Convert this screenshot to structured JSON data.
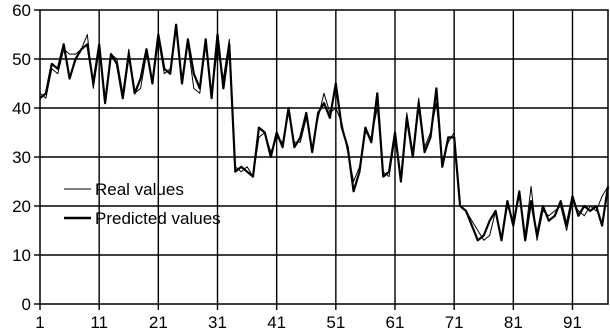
{
  "chart_data": {
    "type": "line",
    "title": "",
    "xlabel": "",
    "ylabel": "",
    "xlim": [
      1,
      97
    ],
    "ylim": [
      0,
      60
    ],
    "x_ticks": [
      1,
      11,
      21,
      31,
      41,
      51,
      61,
      71,
      81,
      91
    ],
    "y_ticks": [
      0,
      10,
      20,
      30,
      40,
      50,
      60
    ],
    "grid": true,
    "legend_position": "bottom-left",
    "series": [
      {
        "name": "Real values",
        "color": "#000000",
        "style": "thin",
        "x": [
          1,
          2,
          3,
          4,
          5,
          6,
          7,
          8,
          9,
          10,
          11,
          12,
          13,
          14,
          15,
          16,
          17,
          18,
          19,
          20,
          21,
          22,
          23,
          24,
          25,
          26,
          27,
          28,
          29,
          30,
          31,
          32,
          33,
          34,
          35,
          36,
          37,
          38,
          39,
          40,
          41,
          42,
          43,
          44,
          45,
          46,
          47,
          48,
          49,
          50,
          51,
          52,
          53,
          54,
          55,
          56,
          57,
          58,
          59,
          60,
          61,
          62,
          63,
          64,
          65,
          66,
          67,
          68,
          69,
          70,
          71,
          72,
          73,
          74,
          75,
          76,
          77,
          78,
          79,
          80,
          81,
          82,
          83,
          84,
          85,
          86,
          87,
          88,
          89,
          90,
          91,
          92,
          93,
          94,
          95,
          96,
          97
        ],
        "y": [
          43,
          42,
          48,
          47,
          52,
          51,
          51,
          52,
          55,
          44,
          52,
          42,
          51,
          50,
          43,
          52,
          43,
          44,
          51,
          46,
          54,
          47,
          48,
          56,
          46,
          53,
          44,
          43,
          53,
          43,
          52,
          46,
          54,
          28,
          27,
          28,
          26,
          34,
          35,
          31,
          34,
          33,
          39,
          33,
          33,
          38,
          32,
          38,
          43,
          39,
          40,
          37,
          31,
          25,
          28,
          35,
          34,
          40,
          27,
          26,
          34,
          26,
          39,
          31,
          42,
          32,
          35,
          41,
          29,
          33,
          35,
          20,
          19,
          17,
          15,
          13,
          14,
          19,
          13,
          20,
          17,
          22,
          14,
          24,
          13,
          19,
          18,
          19,
          20,
          15,
          21,
          19,
          18,
          20,
          19,
          22,
          24
        ]
      },
      {
        "name": "Predicted values",
        "color": "#000000",
        "style": "thick",
        "x": [
          1,
          2,
          3,
          4,
          5,
          6,
          7,
          8,
          9,
          10,
          11,
          12,
          13,
          14,
          15,
          16,
          17,
          18,
          19,
          20,
          21,
          22,
          23,
          24,
          25,
          26,
          27,
          28,
          29,
          30,
          31,
          32,
          33,
          34,
          35,
          36,
          37,
          38,
          39,
          40,
          41,
          42,
          43,
          44,
          45,
          46,
          47,
          48,
          49,
          50,
          51,
          52,
          53,
          54,
          55,
          56,
          57,
          58,
          59,
          60,
          61,
          62,
          63,
          64,
          65,
          66,
          67,
          68,
          69,
          70,
          71,
          72,
          73,
          74,
          75,
          76,
          77,
          78,
          79,
          80,
          81,
          82,
          83,
          84,
          85,
          86,
          87,
          88,
          89,
          90,
          91,
          92,
          93,
          94,
          95,
          96,
          97
        ],
        "y": [
          42,
          43,
          49,
          48,
          53,
          46,
          50,
          52,
          53,
          45,
          53,
          41,
          51,
          49,
          42,
          51,
          43,
          46,
          52,
          45,
          55,
          48,
          47,
          57,
          45,
          54,
          47,
          44,
          54,
          42,
          55,
          44,
          53,
          27,
          28,
          27,
          26,
          36,
          35,
          30,
          35,
          32,
          40,
          32,
          34,
          39,
          31,
          39,
          41,
          38,
          45,
          36,
          32,
          23,
          27,
          36,
          33,
          43,
          26,
          27,
          35,
          25,
          38,
          30,
          41,
          31,
          34,
          44,
          28,
          34,
          34,
          20,
          19,
          16,
          13,
          14,
          17,
          19,
          13,
          21,
          16,
          23,
          13,
          21,
          14,
          20,
          17,
          18,
          21,
          16,
          22,
          18,
          20,
          19,
          20,
          16,
          24
        ]
      }
    ]
  }
}
